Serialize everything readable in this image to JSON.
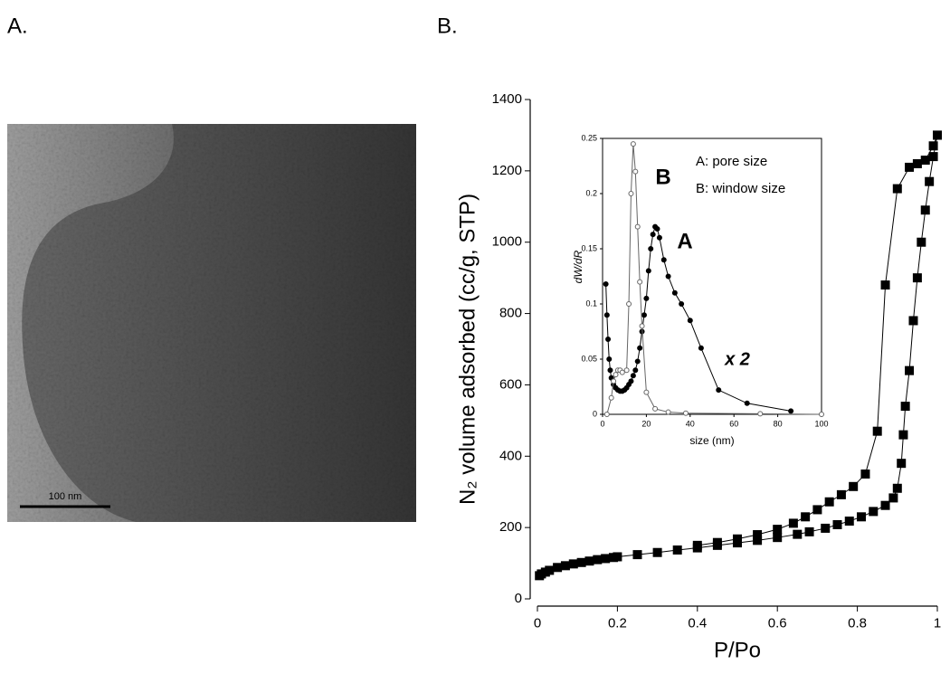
{
  "panel_labels": [
    "A.",
    "B."
  ],
  "image": {
    "scale_bar": "100 nm"
  },
  "chart_data": [
    {
      "type": "line",
      "xlabel": "P/Po",
      "ylabel": "N₂ volume adsorbed (cc/g, STP)",
      "xlim": [
        0,
        1
      ],
      "ylim": [
        0,
        1400
      ],
      "xticks": [
        0,
        0.2,
        0.4,
        0.6,
        0.8,
        1
      ],
      "yticks": [
        0,
        200,
        400,
        600,
        800,
        1000,
        1200,
        1400
      ],
      "frame": "axes",
      "marker": "square",
      "series": [
        {
          "color": "#000000",
          "x": [
            0.005,
            0.01,
            0.02,
            0.03,
            0.05,
            0.07,
            0.09,
            0.11,
            0.13,
            0.15,
            0.17,
            0.19,
            0.2,
            0.25,
            0.3,
            0.35,
            0.4,
            0.45,
            0.5,
            0.55,
            0.6,
            0.65,
            0.68,
            0.72,
            0.75,
            0.78,
            0.81,
            0.84,
            0.87,
            0.89,
            0.9,
            0.91,
            0.915,
            0.92,
            0.93,
            0.94,
            0.95,
            0.96,
            0.97,
            0.98,
            0.99,
            1.0
          ],
          "values": [
            65,
            70,
            75,
            80,
            88,
            93,
            98,
            102,
            106,
            110,
            113,
            116,
            118,
            124,
            130,
            137,
            143,
            150,
            157,
            164,
            172,
            181,
            188,
            198,
            208,
            218,
            230,
            245,
            262,
            283,
            310,
            380,
            460,
            540,
            640,
            780,
            900,
            1000,
            1090,
            1170,
            1240,
            1300
          ]
        },
        {
          "color": "#000000",
          "x": [
            1.0,
            0.99,
            0.97,
            0.95,
            0.93,
            0.9,
            0.87,
            0.85,
            0.82,
            0.79,
            0.76,
            0.73,
            0.7,
            0.67,
            0.64,
            0.6,
            0.55,
            0.5,
            0.45,
            0.4
          ],
          "values": [
            1300,
            1270,
            1230,
            1220,
            1210,
            1150,
            880,
            470,
            350,
            315,
            292,
            272,
            250,
            230,
            212,
            195,
            180,
            168,
            158,
            150
          ]
        }
      ]
    },
    {
      "type": "line",
      "xlabel": "size (nm)",
      "ylabel": "dW/dR",
      "xlim": [
        0,
        100
      ],
      "ylim": [
        0,
        0.25
      ],
      "xticks": [
        0,
        20,
        40,
        60,
        80,
        100
      ],
      "yticks": [
        0,
        0.05,
        0.1,
        0.15,
        0.2,
        0.25
      ],
      "frame": "box",
      "marker": "circle",
      "annotations": [
        "B",
        "A",
        "x 2"
      ],
      "series": [
        {
          "name": "A: pore size",
          "color": "#000000",
          "fill": "filled",
          "x": [
            1.5,
            2,
            2.5,
            3,
            3.5,
            4,
            5,
            6,
            7,
            8,
            9,
            10,
            11,
            12,
            13,
            14,
            15,
            16,
            17,
            18,
            19,
            20,
            21,
            22,
            23,
            24,
            25,
            26,
            28,
            30,
            33,
            36,
            40,
            45,
            53,
            66,
            86
          ],
          "values": [
            0.118,
            0.09,
            0.068,
            0.05,
            0.04,
            0.033,
            0.027,
            0.024,
            0.022,
            0.021,
            0.021,
            0.022,
            0.024,
            0.027,
            0.03,
            0.035,
            0.04,
            0.048,
            0.06,
            0.075,
            0.09,
            0.105,
            0.13,
            0.15,
            0.163,
            0.17,
            0.168,
            0.16,
            0.14,
            0.125,
            0.11,
            0.1,
            0.085,
            0.06,
            0.022,
            0.01,
            0.003
          ]
        },
        {
          "name": "B: window size",
          "color": "#666666",
          "fill": "open",
          "x": [
            2,
            4,
            5,
            6,
            7,
            8,
            9,
            11,
            12,
            13,
            14,
            15,
            16,
            17,
            18,
            20,
            24,
            30,
            38,
            72,
            100
          ],
          "values": [
            0,
            0.015,
            0.03,
            0.036,
            0.04,
            0.04,
            0.038,
            0.04,
            0.1,
            0.2,
            0.245,
            0.22,
            0.17,
            0.12,
            0.08,
            0.02,
            0.005,
            0.002,
            0.001,
            0.0005,
            0
          ]
        }
      ]
    }
  ]
}
